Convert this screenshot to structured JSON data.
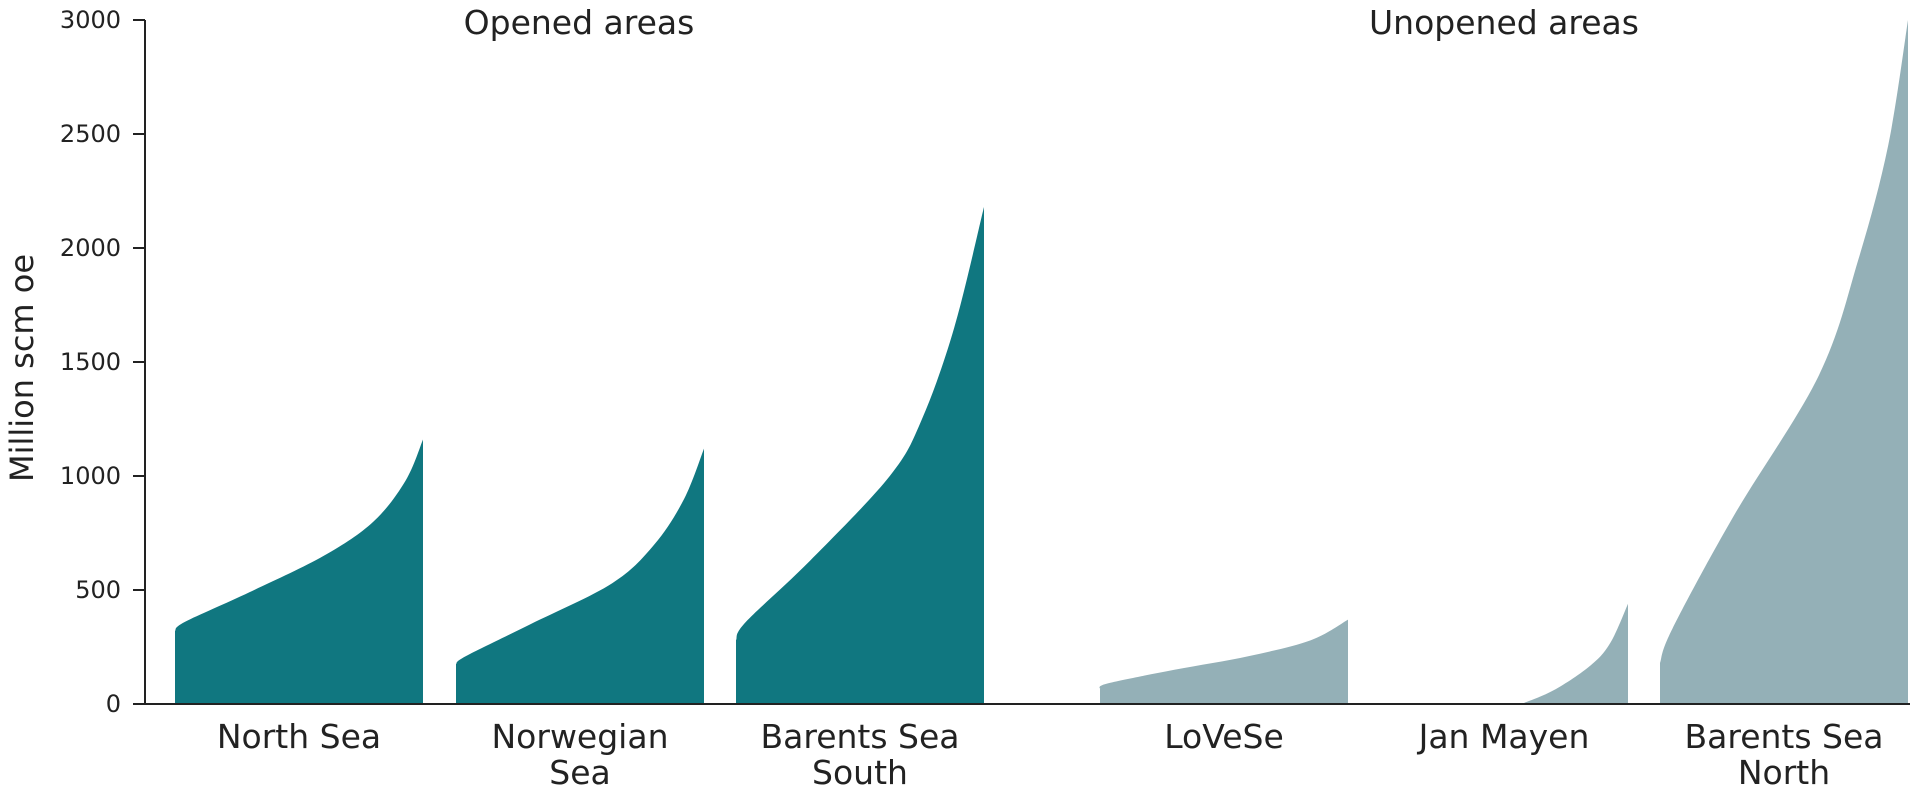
{
  "chart_data": {
    "type": "area",
    "ylabel": "Million scm oe",
    "ylim": [
      0,
      3000
    ],
    "yticks": [
      0,
      500,
      1000,
      1500,
      2000,
      2500,
      3000
    ],
    "group_labels": [
      "Opened areas",
      "Unopened areas"
    ],
    "colors": {
      "opened": "#107780",
      "unopened": "#94B0B7"
    },
    "series": [
      {
        "name": "North Sea",
        "label_lines": [
          "North Sea"
        ],
        "group": "opened",
        "profile": [
          [
            0,
            320
          ],
          [
            0.04,
            360
          ],
          [
            0.3,
            490
          ],
          [
            0.6,
            650
          ],
          [
            0.8,
            800
          ],
          [
            0.93,
            980
          ],
          [
            1,
            1160
          ]
        ]
      },
      {
        "name": "Norwegian Sea",
        "label_lines": [
          "Norwegian",
          "Sea"
        ],
        "group": "opened",
        "profile": [
          [
            0,
            175
          ],
          [
            0.04,
            210
          ],
          [
            0.3,
            350
          ],
          [
            0.63,
            530
          ],
          [
            0.8,
            700
          ],
          [
            0.92,
            900
          ],
          [
            1,
            1120
          ]
        ]
      },
      {
        "name": "Barents Sea South",
        "label_lines": [
          "Barents Sea",
          "South"
        ],
        "group": "opened",
        "profile": [
          [
            0,
            280
          ],
          [
            0.04,
            360
          ],
          [
            0.3,
            630
          ],
          [
            0.62,
            1000
          ],
          [
            0.75,
            1250
          ],
          [
            0.88,
            1650
          ],
          [
            1,
            2180
          ]
        ]
      },
      {
        "name": "LoVeSe",
        "label_lines": [
          "LoVeSe"
        ],
        "group": "unopened",
        "profile": [
          [
            0,
            65
          ],
          [
            0.03,
            90
          ],
          [
            0.3,
            150
          ],
          [
            0.6,
            210
          ],
          [
            0.85,
            280
          ],
          [
            1,
            370
          ]
        ]
      },
      {
        "name": "Jan Mayen",
        "label_lines": [
          "Jan Mayen"
        ],
        "group": "unopened",
        "profile": [
          [
            0.57,
            0
          ],
          [
            0.7,
            60
          ],
          [
            0.85,
            170
          ],
          [
            0.93,
            270
          ],
          [
            1,
            440
          ]
        ]
      },
      {
        "name": "Barents Sea North",
        "label_lines": [
          "Barents Sea",
          "North"
        ],
        "group": "unopened",
        "profile": [
          [
            0,
            180
          ],
          [
            0.05,
            330
          ],
          [
            0.3,
            830
          ],
          [
            0.64,
            1440
          ],
          [
            0.8,
            1950
          ],
          [
            0.92,
            2450
          ],
          [
            1,
            3000
          ]
        ]
      }
    ]
  }
}
